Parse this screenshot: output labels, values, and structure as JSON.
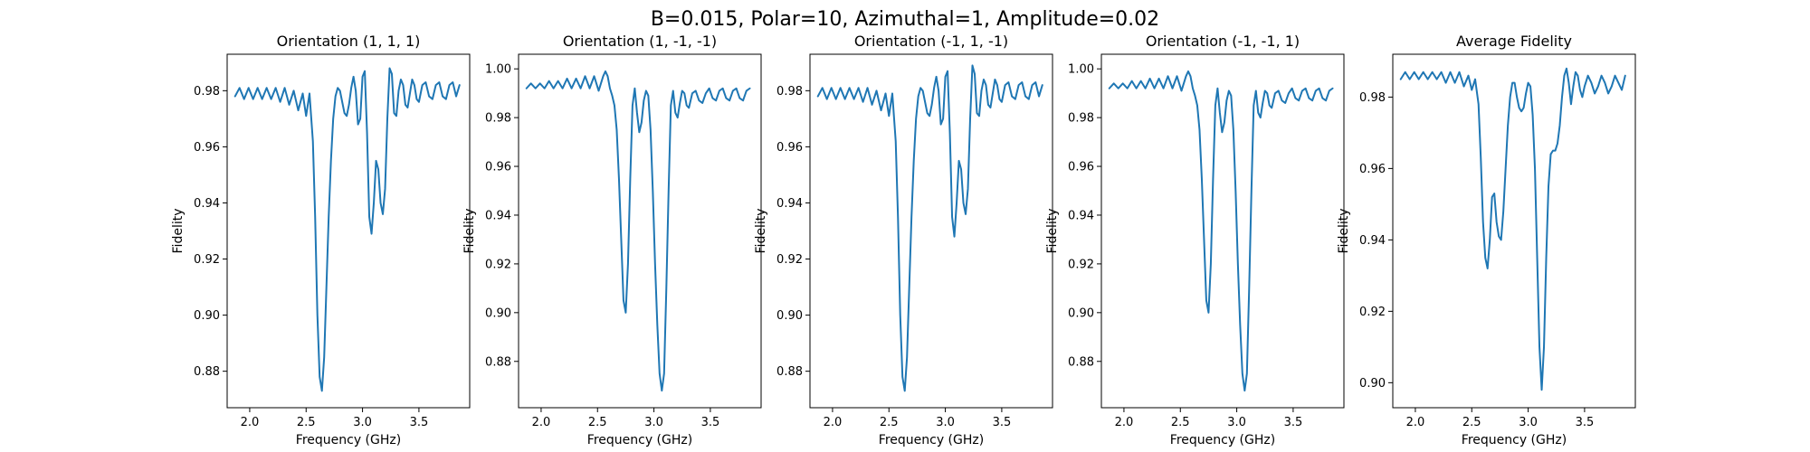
{
  "figure": {
    "title": "B=0.015, Polar=10, Azimuthal=1, Amplitude=0.02",
    "line_color": "#1f77b4"
  },
  "chart_data": [
    {
      "type": "line",
      "title": "Orientation (1, 1, 1)",
      "xlabel": "Frequency (GHz)",
      "ylabel": "Fidelity",
      "xlim": [
        1.8,
        3.95
      ],
      "ylim": [
        0.867,
        0.993
      ],
      "xticks": [
        2.0,
        2.5,
        3.0,
        3.5
      ],
      "xtick_labels": [
        "2.0",
        "2.5",
        "3.0",
        "3.5"
      ],
      "yticks": [
        0.88,
        0.9,
        0.92,
        0.94,
        0.96,
        0.98
      ],
      "ytick_labels": [
        "0.88",
        "0.90",
        "0.92",
        "0.94",
        "0.96",
        "0.98"
      ],
      "grid": false,
      "series": [
        {
          "x": [
            1.87,
            1.91,
            1.95,
            1.99,
            2.03,
            2.07,
            2.11,
            2.15,
            2.19,
            2.23,
            2.27,
            2.31,
            2.35,
            2.39,
            2.43,
            2.47,
            2.5,
            2.53,
            2.56,
            2.58,
            2.6,
            2.62,
            2.64,
            2.66,
            2.68,
            2.7,
            2.72,
            2.74,
            2.76,
            2.78,
            2.8,
            2.82,
            2.84,
            2.86,
            2.88,
            2.9,
            2.92,
            2.94,
            2.96,
            2.98,
            3.0,
            3.02,
            3.04,
            3.06,
            3.08,
            3.1,
            3.12,
            3.14,
            3.16,
            3.18,
            3.2,
            3.22,
            3.24,
            3.26,
            3.28,
            3.3,
            3.32,
            3.34,
            3.36,
            3.38,
            3.4,
            3.42,
            3.44,
            3.46,
            3.48,
            3.5,
            3.53,
            3.56,
            3.59,
            3.62,
            3.65,
            3.68,
            3.71,
            3.74,
            3.77,
            3.8,
            3.83,
            3.86
          ],
          "y": [
            0.978,
            0.981,
            0.977,
            0.981,
            0.977,
            0.981,
            0.977,
            0.981,
            0.977,
            0.981,
            0.976,
            0.981,
            0.975,
            0.98,
            0.973,
            0.979,
            0.971,
            0.979,
            0.962,
            0.935,
            0.9,
            0.878,
            0.873,
            0.885,
            0.91,
            0.935,
            0.955,
            0.97,
            0.978,
            0.981,
            0.98,
            0.976,
            0.972,
            0.971,
            0.975,
            0.981,
            0.985,
            0.98,
            0.968,
            0.97,
            0.985,
            0.987,
            0.965,
            0.935,
            0.929,
            0.94,
            0.955,
            0.952,
            0.94,
            0.936,
            0.945,
            0.97,
            0.988,
            0.986,
            0.972,
            0.971,
            0.98,
            0.984,
            0.982,
            0.975,
            0.974,
            0.979,
            0.984,
            0.982,
            0.977,
            0.976,
            0.982,
            0.983,
            0.978,
            0.977,
            0.982,
            0.983,
            0.978,
            0.977,
            0.982,
            0.983,
            0.978,
            0.982
          ]
        }
      ]
    },
    {
      "type": "line",
      "title": "Orientation (1, -1, -1)",
      "xlabel": "Frequency (GHz)",
      "ylabel": "Fidelity",
      "xlim": [
        1.8,
        3.95
      ],
      "ylim": [
        0.861,
        1.006
      ],
      "xticks": [
        2.0,
        2.5,
        3.0,
        3.5
      ],
      "xtick_labels": [
        "2.0",
        "2.5",
        "3.0",
        "3.5"
      ],
      "yticks": [
        0.88,
        0.9,
        0.92,
        0.94,
        0.96,
        0.98,
        1.0
      ],
      "ytick_labels": [
        "0.88",
        "0.90",
        "0.92",
        "0.94",
        "0.96",
        "0.98",
        "1.00"
      ],
      "grid": false,
      "series": [
        {
          "x": [
            1.87,
            1.91,
            1.95,
            1.99,
            2.03,
            2.07,
            2.11,
            2.15,
            2.19,
            2.23,
            2.27,
            2.31,
            2.35,
            2.39,
            2.43,
            2.47,
            2.51,
            2.55,
            2.57,
            2.59,
            2.61,
            2.63,
            2.65,
            2.67,
            2.69,
            2.71,
            2.73,
            2.75,
            2.77,
            2.79,
            2.81,
            2.83,
            2.85,
            2.87,
            2.89,
            2.91,
            2.93,
            2.95,
            2.97,
            2.99,
            3.01,
            3.03,
            3.05,
            3.07,
            3.09,
            3.11,
            3.13,
            3.15,
            3.17,
            3.19,
            3.21,
            3.23,
            3.25,
            3.27,
            3.29,
            3.31,
            3.34,
            3.37,
            3.4,
            3.43,
            3.46,
            3.49,
            3.52,
            3.55,
            3.58,
            3.61,
            3.64,
            3.67,
            3.7,
            3.73,
            3.76,
            3.79,
            3.82,
            3.85
          ],
          "y": [
            0.992,
            0.994,
            0.992,
            0.994,
            0.992,
            0.995,
            0.992,
            0.995,
            0.992,
            0.996,
            0.992,
            0.996,
            0.992,
            0.997,
            0.992,
            0.997,
            0.991,
            0.997,
            0.999,
            0.997,
            0.992,
            0.989,
            0.985,
            0.975,
            0.955,
            0.93,
            0.905,
            0.9,
            0.92,
            0.955,
            0.985,
            0.992,
            0.982,
            0.974,
            0.978,
            0.987,
            0.991,
            0.989,
            0.975,
            0.95,
            0.92,
            0.895,
            0.875,
            0.868,
            0.875,
            0.91,
            0.95,
            0.985,
            0.991,
            0.982,
            0.98,
            0.986,
            0.991,
            0.99,
            0.985,
            0.984,
            0.99,
            0.991,
            0.987,
            0.986,
            0.99,
            0.992,
            0.988,
            0.987,
            0.991,
            0.992,
            0.988,
            0.987,
            0.991,
            0.992,
            0.988,
            0.987,
            0.991,
            0.992
          ]
        }
      ]
    },
    {
      "type": "line",
      "title": "Orientation (-1, 1, -1)",
      "xlabel": "Frequency (GHz)",
      "ylabel": "Fidelity",
      "xlim": [
        1.8,
        3.95
      ],
      "ylim": [
        0.867,
        0.993
      ],
      "xticks": [
        2.0,
        2.5,
        3.0,
        3.5
      ],
      "xtick_labels": [
        "2.0",
        "2.5",
        "3.0",
        "3.5"
      ],
      "yticks": [
        0.88,
        0.9,
        0.92,
        0.94,
        0.96,
        0.98
      ],
      "ytick_labels": [
        "0.88",
        "0.90",
        "0.92",
        "0.94",
        "0.96",
        "0.98"
      ],
      "grid": false,
      "series": [
        {
          "x": [
            1.87,
            1.91,
            1.95,
            1.99,
            2.03,
            2.07,
            2.11,
            2.15,
            2.19,
            2.23,
            2.27,
            2.31,
            2.35,
            2.39,
            2.43,
            2.47,
            2.5,
            2.53,
            2.56,
            2.58,
            2.6,
            2.62,
            2.64,
            2.66,
            2.68,
            2.7,
            2.72,
            2.74,
            2.76,
            2.78,
            2.8,
            2.82,
            2.84,
            2.86,
            2.88,
            2.9,
            2.92,
            2.94,
            2.96,
            2.98,
            3.0,
            3.02,
            3.04,
            3.06,
            3.08,
            3.1,
            3.12,
            3.14,
            3.16,
            3.18,
            3.2,
            3.22,
            3.24,
            3.26,
            3.28,
            3.3,
            3.32,
            3.34,
            3.36,
            3.38,
            3.4,
            3.42,
            3.44,
            3.46,
            3.48,
            3.5,
            3.53,
            3.56,
            3.59,
            3.62,
            3.65,
            3.68,
            3.71,
            3.74,
            3.77,
            3.8,
            3.83,
            3.86
          ],
          "y": [
            0.978,
            0.981,
            0.977,
            0.981,
            0.977,
            0.981,
            0.977,
            0.981,
            0.977,
            0.981,
            0.976,
            0.981,
            0.975,
            0.98,
            0.973,
            0.979,
            0.971,
            0.979,
            0.962,
            0.935,
            0.9,
            0.878,
            0.873,
            0.885,
            0.91,
            0.935,
            0.955,
            0.97,
            0.978,
            0.981,
            0.98,
            0.976,
            0.972,
            0.971,
            0.975,
            0.981,
            0.985,
            0.98,
            0.968,
            0.97,
            0.985,
            0.987,
            0.965,
            0.935,
            0.928,
            0.94,
            0.955,
            0.952,
            0.94,
            0.936,
            0.945,
            0.97,
            0.989,
            0.986,
            0.972,
            0.971,
            0.98,
            0.984,
            0.982,
            0.975,
            0.974,
            0.979,
            0.984,
            0.982,
            0.977,
            0.976,
            0.982,
            0.983,
            0.978,
            0.977,
            0.982,
            0.983,
            0.978,
            0.977,
            0.982,
            0.983,
            0.978,
            0.982
          ]
        }
      ]
    },
    {
      "type": "line",
      "title": "Orientation (-1, -1, 1)",
      "xlabel": "Frequency (GHz)",
      "ylabel": "Fidelity",
      "xlim": [
        1.8,
        3.95
      ],
      "ylim": [
        0.861,
        1.006
      ],
      "xticks": [
        2.0,
        2.5,
        3.0,
        3.5
      ],
      "xtick_labels": [
        "2.0",
        "2.5",
        "3.0",
        "3.5"
      ],
      "yticks": [
        0.88,
        0.9,
        0.92,
        0.94,
        0.96,
        0.98,
        1.0
      ],
      "ytick_labels": [
        "0.88",
        "0.90",
        "0.92",
        "0.94",
        "0.96",
        "0.98",
        "1.00"
      ],
      "grid": false,
      "series": [
        {
          "x": [
            1.87,
            1.91,
            1.95,
            1.99,
            2.03,
            2.07,
            2.11,
            2.15,
            2.19,
            2.23,
            2.27,
            2.31,
            2.35,
            2.39,
            2.43,
            2.47,
            2.51,
            2.55,
            2.57,
            2.59,
            2.61,
            2.63,
            2.65,
            2.67,
            2.69,
            2.71,
            2.73,
            2.75,
            2.77,
            2.79,
            2.81,
            2.83,
            2.85,
            2.87,
            2.89,
            2.91,
            2.93,
            2.95,
            2.97,
            2.99,
            3.01,
            3.03,
            3.05,
            3.07,
            3.09,
            3.11,
            3.13,
            3.15,
            3.17,
            3.19,
            3.21,
            3.23,
            3.25,
            3.27,
            3.29,
            3.31,
            3.34,
            3.37,
            3.4,
            3.43,
            3.46,
            3.49,
            3.52,
            3.55,
            3.58,
            3.61,
            3.64,
            3.67,
            3.7,
            3.73,
            3.76,
            3.79,
            3.82,
            3.85
          ],
          "y": [
            0.992,
            0.994,
            0.992,
            0.994,
            0.992,
            0.995,
            0.992,
            0.995,
            0.992,
            0.996,
            0.992,
            0.996,
            0.992,
            0.997,
            0.992,
            0.997,
            0.991,
            0.997,
            0.999,
            0.997,
            0.992,
            0.989,
            0.985,
            0.975,
            0.955,
            0.93,
            0.905,
            0.9,
            0.92,
            0.955,
            0.985,
            0.992,
            0.982,
            0.974,
            0.978,
            0.987,
            0.991,
            0.989,
            0.975,
            0.95,
            0.92,
            0.895,
            0.875,
            0.868,
            0.875,
            0.91,
            0.95,
            0.985,
            0.991,
            0.982,
            0.98,
            0.986,
            0.991,
            0.99,
            0.985,
            0.984,
            0.99,
            0.991,
            0.987,
            0.986,
            0.99,
            0.992,
            0.988,
            0.987,
            0.991,
            0.992,
            0.988,
            0.987,
            0.991,
            0.992,
            0.988,
            0.987,
            0.991,
            0.992
          ]
        }
      ]
    },
    {
      "type": "line",
      "title": "Average Fidelity",
      "xlabel": "Frequency (GHz)",
      "ylabel": "Fidelity",
      "xlim": [
        1.8,
        3.95
      ],
      "ylim": [
        0.893,
        0.992
      ],
      "xticks": [
        2.0,
        2.5,
        3.0,
        3.5
      ],
      "xtick_labels": [
        "2.0",
        "2.5",
        "3.0",
        "3.5"
      ],
      "yticks": [
        0.9,
        0.92,
        0.94,
        0.96,
        0.98
      ],
      "ytick_labels": [
        "0.90",
        "0.92",
        "0.94",
        "0.96",
        "0.98"
      ],
      "grid": false,
      "series": [
        {
          "x": [
            1.87,
            1.91,
            1.95,
            1.99,
            2.03,
            2.07,
            2.11,
            2.15,
            2.19,
            2.23,
            2.27,
            2.31,
            2.35,
            2.39,
            2.43,
            2.47,
            2.5,
            2.53,
            2.56,
            2.58,
            2.6,
            2.62,
            2.64,
            2.66,
            2.68,
            2.7,
            2.72,
            2.74,
            2.76,
            2.78,
            2.8,
            2.82,
            2.84,
            2.86,
            2.88,
            2.9,
            2.92,
            2.94,
            2.96,
            2.98,
            3.0,
            3.02,
            3.04,
            3.06,
            3.08,
            3.1,
            3.12,
            3.14,
            3.16,
            3.18,
            3.2,
            3.22,
            3.24,
            3.26,
            3.28,
            3.3,
            3.32,
            3.34,
            3.36,
            3.38,
            3.4,
            3.42,
            3.44,
            3.46,
            3.48,
            3.5,
            3.53,
            3.56,
            3.59,
            3.62,
            3.65,
            3.68,
            3.71,
            3.74,
            3.77,
            3.8,
            3.83,
            3.86
          ],
          "y": [
            0.985,
            0.987,
            0.985,
            0.987,
            0.985,
            0.987,
            0.985,
            0.987,
            0.985,
            0.987,
            0.984,
            0.987,
            0.984,
            0.987,
            0.983,
            0.986,
            0.982,
            0.985,
            0.978,
            0.963,
            0.945,
            0.935,
            0.932,
            0.94,
            0.952,
            0.953,
            0.945,
            0.941,
            0.94,
            0.948,
            0.96,
            0.972,
            0.98,
            0.984,
            0.984,
            0.98,
            0.977,
            0.976,
            0.977,
            0.981,
            0.984,
            0.983,
            0.975,
            0.96,
            0.935,
            0.91,
            0.898,
            0.91,
            0.935,
            0.955,
            0.964,
            0.965,
            0.965,
            0.967,
            0.972,
            0.98,
            0.986,
            0.988,
            0.984,
            0.978,
            0.983,
            0.987,
            0.986,
            0.982,
            0.98,
            0.983,
            0.986,
            0.984,
            0.981,
            0.983,
            0.986,
            0.984,
            0.981,
            0.983,
            0.986,
            0.984,
            0.982,
            0.986
          ]
        }
      ]
    }
  ]
}
